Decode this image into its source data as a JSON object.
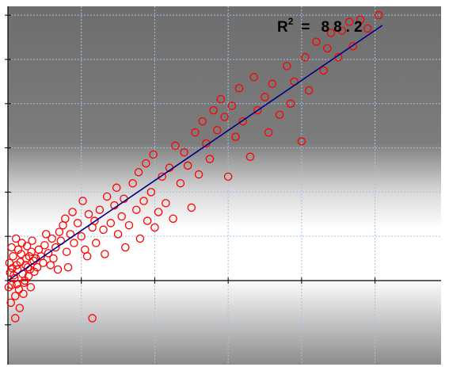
{
  "chart_data": {
    "type": "scatter",
    "title": "",
    "xlabel": "",
    "ylabel": "",
    "xlim": [
      0,
      5.9
    ],
    "ylim": [
      -1.9,
      6.2
    ],
    "grid": true,
    "legend": "none",
    "annotation": {
      "base": "R",
      "superscript": "2",
      "equals": "=",
      "value": "88.2"
    },
    "fit_line": {
      "x": [
        0,
        5.1
      ],
      "y": [
        0,
        5.77
      ]
    },
    "series": [
      {
        "points": [
          [
            0.05,
            -0.1
          ],
          [
            0.08,
            0.12
          ],
          [
            0.12,
            0.35
          ],
          [
            0.15,
            -0.2
          ],
          [
            0.02,
            0.4
          ],
          [
            0.2,
            0.15
          ],
          [
            0.25,
            0.5
          ],
          [
            0.1,
            -0.35
          ],
          [
            0.3,
            0.25
          ],
          [
            0.18,
            0.6
          ],
          [
            0.06,
            0.28
          ],
          [
            0.22,
            -0.05
          ],
          [
            0.35,
            0.45
          ],
          [
            0.28,
            0.1
          ],
          [
            0.04,
            -0.5
          ],
          [
            0.14,
            0.7
          ],
          [
            0.32,
            0.65
          ],
          [
            0.4,
            0.3
          ],
          [
            0.09,
            0.05
          ],
          [
            0.26,
            0.78
          ],
          [
            0.03,
            0.18
          ],
          [
            0.17,
            0.42
          ],
          [
            0.21,
            -0.3
          ],
          [
            0.11,
            0.95
          ],
          [
            0.36,
            0.2
          ],
          [
            0.07,
            0.55
          ],
          [
            0.24,
            0.35
          ],
          [
            0.31,
            -0.15
          ],
          [
            0.13,
            0.25
          ],
          [
            0.19,
            0.85
          ],
          [
            0.01,
            -0.15
          ],
          [
            0.16,
            -0.62
          ],
          [
            0.29,
            0.55
          ],
          [
            0.42,
            0.7
          ],
          [
            0.05,
            0.75
          ],
          [
            0.33,
            0.9
          ],
          [
            0.23,
            0.0
          ],
          [
            0.38,
            0.5
          ],
          [
            0.12,
            -0.08
          ],
          [
            0.27,
            0.3
          ],
          [
            0.45,
            0.55
          ],
          [
            0.5,
            0.8
          ],
          [
            0.55,
            0.62
          ],
          [
            0.48,
            0.4
          ],
          [
            0.6,
            0.95
          ],
          [
            0.52,
            1.05
          ],
          [
            0.58,
            0.35
          ],
          [
            0.65,
            0.75
          ],
          [
            0.7,
            1.1
          ],
          [
            0.62,
            0.5
          ],
          [
            0.72,
            0.9
          ],
          [
            0.68,
            0.25
          ],
          [
            0.75,
            1.25
          ],
          [
            0.8,
            0.65
          ],
          [
            0.78,
            1.4
          ],
          [
            0.85,
            1.05
          ],
          [
            0.9,
            0.85
          ],
          [
            0.88,
            1.55
          ],
          [
            0.95,
            1.3
          ],
          [
            0.82,
            0.3
          ],
          [
            1.0,
            1.0
          ],
          [
            1.05,
            0.7
          ],
          [
            1.1,
            1.5
          ],
          [
            1.15,
            1.2
          ],
          [
            1.02,
            1.8
          ],
          [
            1.2,
            0.85
          ],
          [
            1.25,
            1.6
          ],
          [
            1.18,
            1.35
          ],
          [
            1.08,
            0.55
          ],
          [
            1.3,
            1.15
          ],
          [
            1.35,
            1.9
          ],
          [
            1.4,
            1.3
          ],
          [
            1.32,
            0.6
          ],
          [
            1.45,
            1.7
          ],
          [
            1.5,
            1.05
          ],
          [
            1.48,
            2.1
          ],
          [
            1.55,
            1.45
          ],
          [
            1.6,
            0.75
          ],
          [
            1.58,
            1.85
          ],
          [
            1.65,
            1.25
          ],
          [
            1.7,
            2.2
          ],
          [
            1.75,
            1.6
          ],
          [
            1.8,
            0.95
          ],
          [
            1.78,
            2.45
          ],
          [
            1.85,
            1.8
          ],
          [
            1.9,
            1.35
          ],
          [
            1.88,
            2.65
          ],
          [
            1.95,
            2.0
          ],
          [
            2.0,
            1.2
          ],
          [
            1.98,
            2.85
          ],
          [
            2.05,
            1.55
          ],
          [
            2.1,
            2.35
          ],
          [
            2.15,
            1.75
          ],
          [
            2.2,
            2.55
          ],
          [
            2.25,
            1.4
          ],
          [
            2.28,
            3.05
          ],
          [
            2.35,
            2.2
          ],
          [
            2.4,
            2.9
          ],
          [
            2.45,
            2.6
          ],
          [
            2.5,
            1.65
          ],
          [
            2.55,
            3.35
          ],
          [
            2.6,
            2.4
          ],
          [
            2.65,
            3.6
          ],
          [
            2.7,
            3.1
          ],
          [
            2.75,
            2.75
          ],
          [
            2.8,
            3.85
          ],
          [
            2.85,
            3.4
          ],
          [
            2.9,
            4.1
          ],
          [
            2.95,
            3.7
          ],
          [
            3.0,
            2.35
          ],
          [
            3.05,
            3.95
          ],
          [
            3.1,
            3.25
          ],
          [
            3.15,
            4.35
          ],
          [
            3.2,
            3.6
          ],
          [
            3.3,
            2.8
          ],
          [
            3.35,
            4.6
          ],
          [
            3.4,
            3.85
          ],
          [
            3.5,
            4.15
          ],
          [
            3.55,
            3.35
          ],
          [
            3.6,
            4.45
          ],
          [
            3.7,
            3.75
          ],
          [
            3.8,
            4.85
          ],
          [
            3.85,
            4.0
          ],
          [
            3.9,
            4.5
          ],
          [
            4.0,
            3.15
          ],
          [
            4.05,
            5.05
          ],
          [
            4.1,
            4.3
          ],
          [
            4.2,
            5.4
          ],
          [
            4.3,
            4.75
          ],
          [
            4.35,
            5.25
          ],
          [
            4.4,
            5.6
          ],
          [
            4.5,
            5.05
          ],
          [
            4.55,
            5.65
          ],
          [
            4.65,
            5.85
          ],
          [
            4.7,
            5.3
          ],
          [
            4.8,
            5.9
          ],
          [
            4.9,
            5.7
          ],
          [
            5.05,
            6.0
          ],
          [
            0.1,
            -0.85
          ],
          [
            1.15,
            -0.85
          ]
        ]
      }
    ]
  }
}
